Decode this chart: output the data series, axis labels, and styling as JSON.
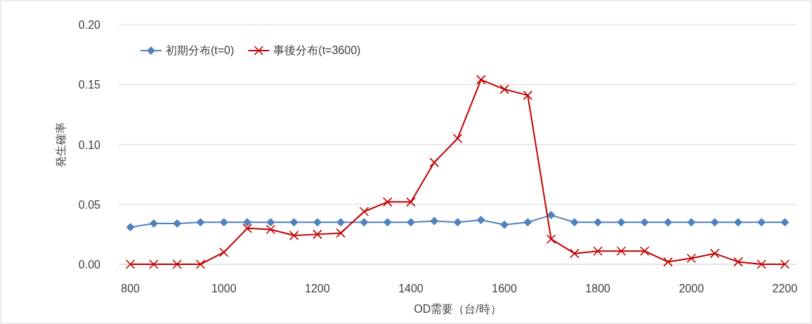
{
  "chart_data": {
    "type": "line",
    "xlabel": "OD需要（台/時）",
    "ylabel": "発生確率",
    "categories": [
      "800",
      null,
      null,
      null,
      "1000",
      null,
      null,
      null,
      "1200",
      null,
      null,
      null,
      "1400",
      null,
      null,
      null,
      "1600",
      null,
      null,
      null,
      "1800",
      null,
      null,
      null,
      "2000",
      null,
      null,
      null,
      "2200"
    ],
    "series": [
      {
        "name": "初期分布(t=0)",
        "color": "#4f81bd",
        "marker": "diamond",
        "values": [
          0.031,
          0.034,
          0.034,
          0.035,
          0.035,
          0.035,
          0.035,
          0.035,
          0.035,
          0.035,
          0.035,
          0.035,
          0.035,
          0.036,
          0.035,
          0.037,
          0.033,
          0.035,
          0.041,
          0.035,
          0.035,
          0.035,
          0.035,
          0.035,
          0.035,
          0.035,
          0.035,
          0.035,
          0.035
        ]
      },
      {
        "name": "事後分布(t=3600)",
        "color": "#c00000",
        "marker": "cross",
        "values": [
          0,
          0,
          0,
          0,
          0.01,
          0.03,
          0.029,
          0.024,
          0.025,
          0.026,
          0.044,
          0.052,
          0.052,
          0.085,
          0.105,
          0.154,
          0.146,
          0.141,
          0.021,
          0.009,
          0.011,
          0.011,
          0.011,
          0.002,
          0.005,
          0.009,
          0.002,
          0,
          0
        ]
      }
    ],
    "ylim": [
      0,
      0.2
    ],
    "yticks": [
      {
        "value": 0,
        "label": "0.00"
      },
      {
        "value": 0.05,
        "label": "0.05"
      },
      {
        "value": 0.1,
        "label": "0.10"
      },
      {
        "value": 0.15,
        "label": "0.15"
      },
      {
        "value": 0.2,
        "label": "0.20"
      }
    ],
    "grid": "y",
    "legend": "top left"
  }
}
